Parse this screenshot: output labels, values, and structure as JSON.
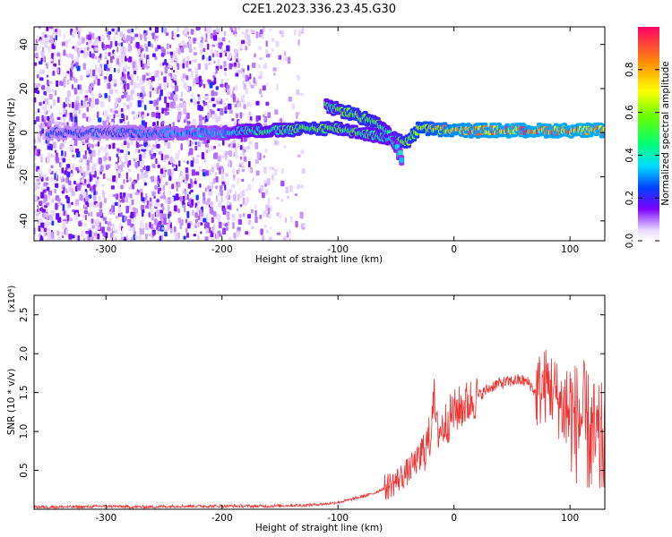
{
  "title": "C2E1.2023.336.23.45.G30",
  "chart_data": [
    {
      "type": "heatmap",
      "xlabel": "Height of straight line (km)",
      "ylabel": "Frequency (Hz)",
      "xlim": [
        -362,
        130
      ],
      "ylim": [
        -49,
        48
      ],
      "xticks": [
        "-300",
        "-200",
        "-100",
        "0",
        "100"
      ],
      "xtick_values": [
        -300,
        -200,
        -100,
        0,
        100
      ],
      "yticks": [
        "-40",
        "-20",
        "0",
        "20",
        "40"
      ],
      "ytick_values": [
        -40,
        -20,
        0,
        20,
        40
      ],
      "colorbar": {
        "label": "Normalized spectral amplitude",
        "range": [
          0,
          1
        ],
        "ticks": [
          "0.0",
          "0.2",
          "0.4",
          "0.6",
          "0.8"
        ],
        "tick_values": [
          0.0,
          0.2,
          0.4,
          0.6,
          0.8
        ]
      },
      "ridge": [
        {
          "x": -350,
          "y": 0,
          "amp": 0.25
        },
        {
          "x": -300,
          "y": 0,
          "amp": 0.25
        },
        {
          "x": -250,
          "y": 0,
          "amp": 0.3
        },
        {
          "x": -200,
          "y": 0,
          "amp": 0.35
        },
        {
          "x": -180,
          "y": 1,
          "amp": 0.45
        },
        {
          "x": -150,
          "y": 1,
          "amp": 0.5
        },
        {
          "x": -120,
          "y": 2,
          "amp": 0.6
        },
        {
          "x": -100,
          "y": 2,
          "amp": 0.55
        },
        {
          "x": -80,
          "y": 0,
          "amp": 0.5
        },
        {
          "x": -60,
          "y": -2,
          "amp": 0.45
        },
        {
          "x": -40,
          "y": -4,
          "amp": 0.6
        },
        {
          "x": -30,
          "y": 2,
          "amp": 0.7
        },
        {
          "x": 0,
          "y": 1,
          "amp": 0.85
        },
        {
          "x": 50,
          "y": 1,
          "amp": 0.9
        },
        {
          "x": 100,
          "y": 1,
          "amp": 0.9
        },
        {
          "x": 130,
          "y": 1,
          "amp": 0.9
        }
      ],
      "branch": [
        {
          "x": -110,
          "y": 12,
          "amp": 0.45
        },
        {
          "x": -90,
          "y": 9,
          "amp": 0.6
        },
        {
          "x": -75,
          "y": 6,
          "amp": 0.6
        },
        {
          "x": -60,
          "y": 2,
          "amp": 0.5
        },
        {
          "x": -50,
          "y": -6,
          "amp": 0.4
        },
        {
          "x": -45,
          "y": -12,
          "amp": 0.35
        }
      ]
    },
    {
      "type": "line",
      "xlabel": "Height of straight line (km)",
      "ylabel": "SNR (10 * v/v)",
      "yscale_label": "(x10⁴)",
      "xlim": [
        -362,
        130
      ],
      "ylim": [
        0,
        2.75
      ],
      "xticks": [
        "-300",
        "-200",
        "-100",
        "0",
        "100"
      ],
      "xtick_values": [
        -300,
        -200,
        -100,
        0,
        100
      ],
      "yticks": [
        "0.5",
        "1.0",
        "1.5",
        "2.0",
        "2.5"
      ],
      "ytick_values": [
        0.5,
        1.0,
        1.5,
        2.0,
        2.5
      ],
      "color": "#ee3333",
      "series": [
        {
          "x": [
            -362,
            -340,
            -320,
            -300,
            -280,
            -260,
            -240,
            -220,
            -200,
            -180,
            -160,
            -140,
            -130,
            -120,
            -110,
            -100,
            -90,
            -80,
            -70,
            -60,
            -50,
            -45,
            -40,
            -35,
            -30,
            -25,
            -20,
            -18,
            -15,
            -10,
            -5,
            0,
            5,
            10,
            15,
            20,
            25,
            30,
            35,
            40,
            45,
            50,
            55,
            60,
            65,
            70,
            75,
            80,
            85,
            90,
            95,
            100,
            105,
            110,
            115,
            120,
            125,
            130
          ],
          "values": [
            0.03,
            0.03,
            0.03,
            0.04,
            0.03,
            0.03,
            0.04,
            0.04,
            0.04,
            0.04,
            0.04,
            0.05,
            0.05,
            0.06,
            0.07,
            0.09,
            0.12,
            0.16,
            0.2,
            0.27,
            0.36,
            0.42,
            0.48,
            0.58,
            0.65,
            0.78,
            0.95,
            1.55,
            1.0,
            1.05,
            1.15,
            1.25,
            1.3,
            1.35,
            1.4,
            1.45,
            1.5,
            1.55,
            1.6,
            1.62,
            1.63,
            1.65,
            1.66,
            1.65,
            1.62,
            1.5,
            1.55,
            1.6,
            1.55,
            1.4,
            1.3,
            1.25,
            1.1,
            1.2,
            1.0,
            0.9,
            0.8,
            0.9
          ]
        }
      ]
    }
  ]
}
